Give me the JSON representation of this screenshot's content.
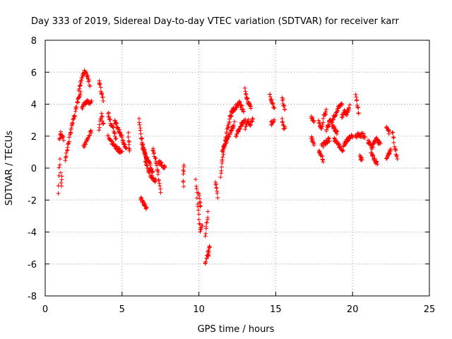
{
  "chart_data": {
    "type": "scatter",
    "title": "Day 333 of 2019, Sidereal Day-to-day VTEC variation (SDTVAR) for receiver karr",
    "xlabel": "GPS time / hours",
    "ylabel": "SDTVAR / TECUs",
    "xlim": [
      0,
      25
    ],
    "ylim": [
      -8,
      8
    ],
    "xticks": [
      0,
      5,
      10,
      15,
      20,
      25
    ],
    "yticks": [
      -8,
      -6,
      -4,
      -2,
      0,
      2,
      4,
      6,
      8
    ],
    "grid": true,
    "marker": "+",
    "series": [
      {
        "name": "SDTVAR",
        "color": "#ff0000",
        "segments": [
          {
            "x0": 0.85,
            "x1": 1.1,
            "y": [
              -1.6,
              -0.2,
              0.5,
              -1.2,
              -0.4
            ]
          },
          {
            "x0": 0.9,
            "x1": 1.2,
            "y": [
              1.7,
              2.2,
              2.0,
              1.8
            ]
          },
          {
            "x0": 1.3,
            "x1": 2.3,
            "y": [
              0.5,
              1.5,
              2.5,
              3.2,
              4.2,
              4.8
            ]
          },
          {
            "x0": 2.2,
            "x1": 2.9,
            "y": [
              4.8,
              5.6,
              6.0,
              5.8,
              5.2
            ]
          },
          {
            "x0": 2.4,
            "x1": 3.0,
            "y": [
              3.8,
              4.2,
              4.1
            ]
          },
          {
            "x0": 2.5,
            "x1": 3.0,
            "y": [
              1.3,
              1.8,
              2.3
            ]
          },
          {
            "x0": 3.5,
            "x1": 3.8,
            "y": [
              5.5,
              4.8,
              4.2
            ]
          },
          {
            "x0": 3.5,
            "x1": 3.8,
            "y": [
              2.5,
              3.3,
              2.7
            ]
          },
          {
            "x0": 4.1,
            "x1": 4.6,
            "y": [
              3.5,
              2.8,
              2.5,
              1.8
            ]
          },
          {
            "x0": 4.1,
            "x1": 5.0,
            "y": [
              2.0,
              1.5,
              1.2,
              1.0
            ]
          },
          {
            "x0": 4.5,
            "x1": 5.3,
            "y": [
              3.0,
              2.4,
              1.8,
              1.2
            ]
          },
          {
            "x0": 5.4,
            "x1": 5.5,
            "y": [
              2.1,
              1.0
            ]
          },
          {
            "x0": 6.1,
            "x1": 6.6,
            "y": [
              3.0,
              2.0,
              1.4,
              1.0,
              0.6
            ]
          },
          {
            "x0": 6.3,
            "x1": 7.0,
            "y": [
              1.5,
              0.8,
              0.3,
              -0.3
            ]
          },
          {
            "x0": 6.5,
            "x1": 7.2,
            "y": [
              0.5,
              -0.2,
              -0.6,
              -0.8
            ]
          },
          {
            "x0": 6.2,
            "x1": 6.6,
            "y": [
              -1.9,
              -2.2,
              -2.5
            ]
          },
          {
            "x0": 7.0,
            "x1": 7.5,
            "y": [
              1.2,
              0.6,
              -0.2,
              -1.6
            ]
          },
          {
            "x0": 7.4,
            "x1": 7.8,
            "y": [
              0.4,
              0.0
            ]
          },
          {
            "x0": 9.0,
            "x1": 9.0,
            "y": [
              0.2,
              -0.3,
              -1.2
            ]
          },
          {
            "x0": 9.8,
            "x1": 10.2,
            "y": [
              -0.8,
              -2.0,
              -3.0,
              -4.0,
              -3.5
            ]
          },
          {
            "x0": 10.0,
            "x1": 10.1,
            "y": [
              -1.5,
              -2.5
            ]
          },
          {
            "x0": 10.4,
            "x1": 10.6,
            "y": [
              -6.0,
              -5.6,
              -5.2
            ]
          },
          {
            "x0": 10.4,
            "x1": 10.6,
            "y": [
              -4.2,
              -3.5,
              -2.8
            ]
          },
          {
            "x0": 10.6,
            "x1": 10.7,
            "y": [
              -5.5,
              -4.8
            ]
          },
          {
            "x0": 11.1,
            "x1": 11.2,
            "y": [
              -0.8,
              -1.8
            ]
          },
          {
            "x0": 11.4,
            "x1": 12.2,
            "y": [
              -0.5,
              0.8,
              1.8,
              2.6,
              3.2,
              3.6
            ]
          },
          {
            "x0": 11.5,
            "x1": 12.3,
            "y": [
              1.0,
              1.6,
              2.2,
              2.8
            ]
          },
          {
            "x0": 12.1,
            "x1": 12.9,
            "y": [
              3.5,
              3.8,
              4.1,
              3.6
            ]
          },
          {
            "x0": 12.4,
            "x1": 13.0,
            "y": [
              2.0,
              2.6,
              3.0
            ]
          },
          {
            "x0": 13.0,
            "x1": 13.5,
            "y": [
              2.5,
              3.0,
              2.7,
              3.1
            ]
          },
          {
            "x0": 13.0,
            "x1": 13.4,
            "y": [
              5.0,
              4.3,
              4.0,
              3.8
            ]
          },
          {
            "x0": 14.6,
            "x1": 14.9,
            "y": [
              4.6,
              4.2,
              3.8
            ]
          },
          {
            "x0": 14.7,
            "x1": 14.9,
            "y": [
              2.8,
              3.0
            ]
          },
          {
            "x0": 15.4,
            "x1": 15.6,
            "y": [
              4.4,
              4.0,
              3.6
            ]
          },
          {
            "x0": 15.4,
            "x1": 15.6,
            "y": [
              3.0,
              2.6,
              2.5
            ]
          },
          {
            "x0": 17.3,
            "x1": 17.5,
            "y": [
              3.2,
              2.9
            ]
          },
          {
            "x0": 17.3,
            "x1": 17.5,
            "y": [
              1.9,
              1.5
            ]
          },
          {
            "x0": 17.8,
            "x1": 18.3,
            "y": [
              3.0,
              2.4,
              3.3,
              3.6
            ]
          },
          {
            "x0": 17.8,
            "x1": 18.1,
            "y": [
              1.0,
              0.5
            ]
          },
          {
            "x0": 18.0,
            "x1": 18.5,
            "y": [
              1.4,
              1.6,
              1.8
            ]
          },
          {
            "x0": 18.3,
            "x1": 19.0,
            "y": [
              2.4,
              3.0,
              2.6,
              2.2
            ]
          },
          {
            "x0": 18.7,
            "x1": 19.3,
            "y": [
              3.0,
              3.4,
              3.8,
              4.0
            ]
          },
          {
            "x0": 18.8,
            "x1": 19.4,
            "y": [
              1.8,
              1.5,
              1.0
            ]
          },
          {
            "x0": 19.3,
            "x1": 19.8,
            "y": [
              3.2,
              3.6,
              3.4,
              3.9
            ]
          },
          {
            "x0": 19.4,
            "x1": 20.0,
            "y": [
              1.4,
              1.7,
              1.9,
              2.0
            ]
          },
          {
            "x0": 20.2,
            "x1": 20.4,
            "y": [
              4.6,
              4.0,
              3.4
            ]
          },
          {
            "x0": 20.2,
            "x1": 20.8,
            "y": [
              2.0,
              2.1,
              2.0
            ]
          },
          {
            "x0": 20.5,
            "x1": 20.6,
            "y": [
              0.7,
              0.5
            ]
          },
          {
            "x0": 21.0,
            "x1": 21.8,
            "y": [
              1.7,
              1.3,
              1.8,
              1.5
            ]
          },
          {
            "x0": 21.2,
            "x1": 21.6,
            "y": [
              1.0,
              0.5,
              0.3
            ]
          },
          {
            "x0": 22.2,
            "x1": 22.4,
            "y": [
              2.6,
              2.2
            ]
          },
          {
            "x0": 22.2,
            "x1": 22.5,
            "y": [
              0.5,
              0.9,
              1.1
            ]
          },
          {
            "x0": 22.6,
            "x1": 22.9,
            "y": [
              2.3,
              1.6,
              1.0,
              0.6
            ]
          }
        ]
      }
    ]
  }
}
